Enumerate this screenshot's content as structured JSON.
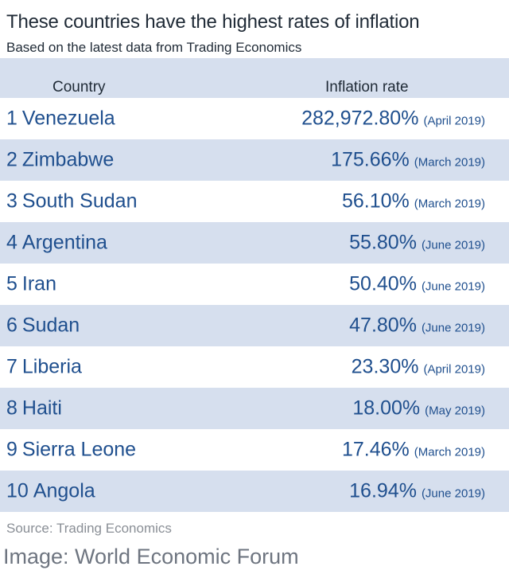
{
  "title": "These countries have the highest rates of inflation",
  "subtitle": "Based on the latest data from Trading Economics",
  "source": "Source: Trading Economics",
  "credit": "Image: World Economic Forum",
  "colors": {
    "header_band": "#d6dfee",
    "text_dark": "#1f2a36",
    "text_blue": "#1f4f8e"
  },
  "chart_data": {
    "type": "table",
    "title": "These countries have the highest rates of inflation",
    "subtitle": "Based on the latest data from Trading Economics",
    "columns": [
      "Country",
      "Inflation rate"
    ],
    "rows": [
      {
        "rank": "1",
        "country": "Venezuela",
        "rate": "282,972.80%",
        "date": "(April 2019)"
      },
      {
        "rank": "2",
        "country": "Zimbabwe",
        "rate": "175.66%",
        "date": "(March 2019)"
      },
      {
        "rank": "3",
        "country": "South Sudan",
        "rate": "56.10%",
        "date": "(March 2019)"
      },
      {
        "rank": "4",
        "country": "Argentina",
        "rate": "55.80%",
        "date": "(June 2019)"
      },
      {
        "rank": "5",
        "country": "Iran",
        "rate": "50.40%",
        "date": "(June 2019)"
      },
      {
        "rank": "6",
        "country": "Sudan",
        "rate": "47.80%",
        "date": "(June 2019)"
      },
      {
        "rank": "7",
        "country": "Liberia",
        "rate": "23.30%",
        "date": "(April 2019)"
      },
      {
        "rank": "8",
        "country": "Haiti",
        "rate": "18.00%",
        "date": "(May 2019)"
      },
      {
        "rank": "9",
        "country": "Sierra Leone",
        "rate": "17.46%",
        "date": "(March 2019)"
      },
      {
        "rank": "10",
        "country": "Angola",
        "rate": "16.94%",
        "date": "(June 2019)"
      }
    ]
  }
}
